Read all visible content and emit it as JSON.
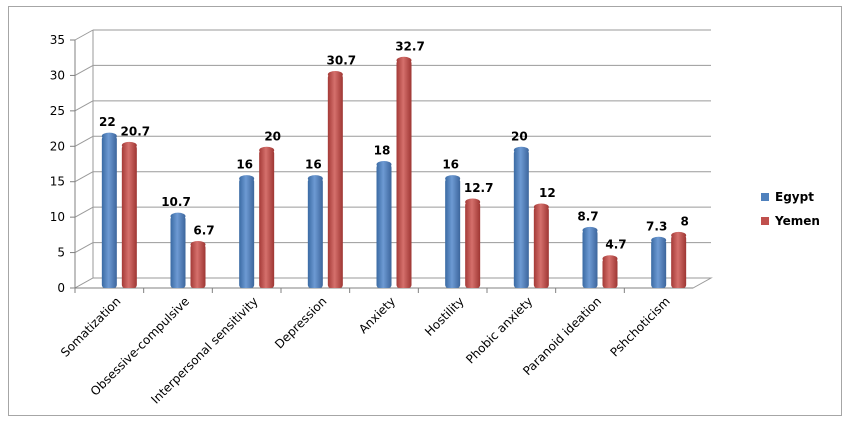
{
  "chart_data": {
    "type": "bar",
    "categories": [
      "Somatization",
      "Obsessive-compulsive",
      "Interpersonal sensitivity",
      "Depression",
      "Anxiety",
      "Hostility",
      "Phobic anxiety",
      "Paranoid ideation",
      "Pshchoticism"
    ],
    "series": [
      {
        "name": "Egypt",
        "values": [
          22,
          10.7,
          16,
          16,
          18,
          16,
          20,
          8.7,
          7.3
        ],
        "color": "#4f81bd"
      },
      {
        "name": "Yemen",
        "values": [
          20.7,
          6.7,
          20,
          30.7,
          32.7,
          12.7,
          12,
          4.7,
          8
        ],
        "color": "#c0504d"
      }
    ],
    "data_labels": [
      [
        "22",
        "10.7",
        "16",
        "16",
        "18",
        "16",
        "20",
        "8.7",
        "7.3"
      ],
      [
        "20.7",
        "6.7",
        "20",
        "30.7",
        "32.7",
        "12.7",
        "12",
        "4.7",
        "8"
      ]
    ],
    "ylim": [
      0,
      35
    ],
    "yticks": [
      0,
      5,
      10,
      15,
      20,
      25,
      30,
      35
    ],
    "grid": true,
    "legend_position": "right",
    "style": "3d-clustered-column",
    "title": "",
    "xlabel": "",
    "ylabel": ""
  }
}
